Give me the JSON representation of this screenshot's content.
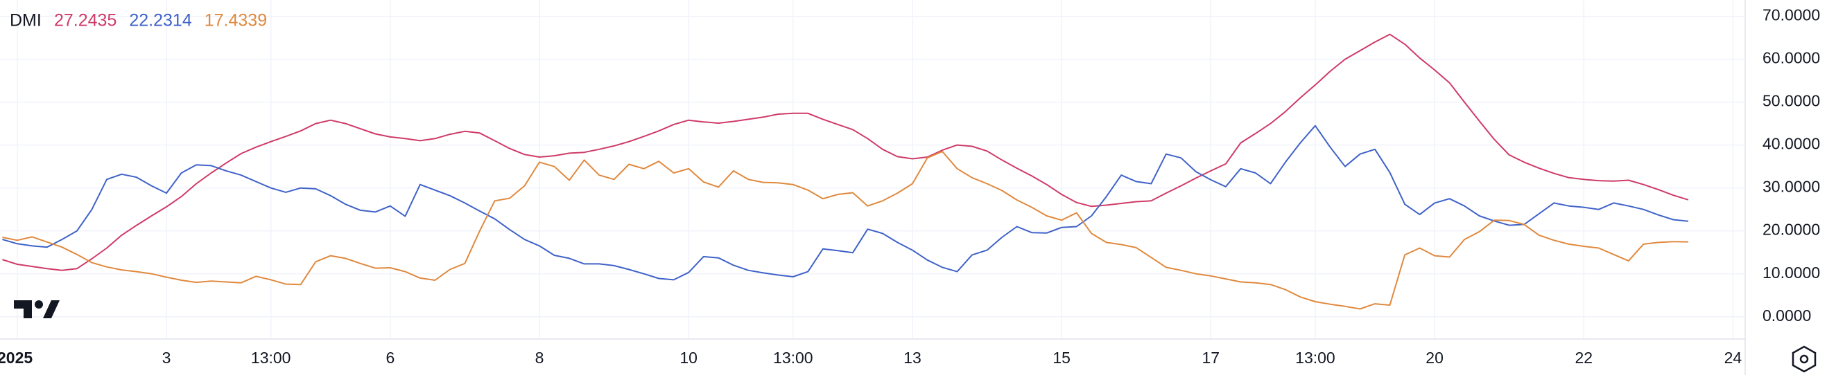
{
  "chart_data": {
    "type": "line",
    "title": "DMI",
    "categories": [
      null,
      "2025",
      null,
      null,
      null,
      null,
      null,
      null,
      null,
      null,
      null,
      "3",
      null,
      null,
      null,
      null,
      null,
      null,
      "13:00",
      null,
      null,
      null,
      null,
      null,
      null,
      null,
      "6",
      null,
      null,
      null,
      null,
      null,
      null,
      null,
      null,
      null,
      "8",
      null,
      null,
      null,
      null,
      null,
      null,
      null,
      null,
      null,
      "10",
      null,
      null,
      null,
      null,
      null,
      null,
      "13:00",
      null,
      null,
      null,
      null,
      null,
      null,
      null,
      "13",
      null,
      null,
      null,
      null,
      null,
      null,
      null,
      null,
      null,
      "15",
      null,
      null,
      null,
      null,
      null,
      null,
      null,
      null,
      null,
      "17",
      null,
      null,
      null,
      null,
      null,
      null,
      "13:00",
      null,
      null,
      null,
      null,
      null,
      null,
      null,
      "20",
      null,
      null,
      null,
      null,
      null,
      null,
      null,
      null,
      null,
      "22",
      null,
      null,
      null,
      null,
      null,
      null,
      null,
      null,
      null,
      "24"
    ],
    "series": [
      {
        "color": "#cf3a68",
        "values": [
          13.3,
          12.2,
          11.7,
          11.2,
          10.8,
          11.2,
          13.5,
          16,
          19,
          21.3,
          23.5,
          25.6,
          28,
          31,
          33.5,
          35.8,
          38,
          39.5,
          40.8,
          42,
          43.3,
          45,
          45.8,
          45,
          43.8,
          42.6,
          41.9,
          41.5,
          41,
          41.5,
          42.5,
          43.2,
          42.8,
          41,
          39.2,
          37.8,
          37.2,
          37.5,
          38.1,
          38.3,
          39,
          39.8,
          40.8,
          42,
          43.3,
          44.8,
          45.8,
          45.4,
          45.1,
          45.5,
          46,
          46.5,
          47.2,
          47.4,
          47.4,
          46,
          44.8,
          43.6,
          41.5,
          39,
          37.3,
          36.8,
          37.2,
          38.8,
          40,
          39.7,
          38.6,
          36.5,
          34.6,
          32.8,
          30.8,
          28.5,
          26.6,
          25.7,
          26,
          26.4,
          26.8,
          27,
          28.8,
          30.5,
          32.3,
          34,
          35.6,
          40.5,
          42.7,
          45,
          47.8,
          51,
          54,
          57.2,
          60,
          62,
          64,
          65.8,
          63.5,
          60.3,
          57.5,
          54.5,
          50,
          45.6,
          41.3,
          37.7,
          36,
          34.6,
          33.4,
          32.4,
          32,
          31.7,
          31.6,
          31.8,
          30.8,
          29.6,
          28.3,
          27.2435,
          null,
          null,
          null
        ]
      },
      {
        "color": "#3f62c8",
        "values": [
          18,
          17,
          16.5,
          16.2,
          18,
          20,
          25,
          32,
          33.2,
          32.5,
          30.5,
          28.8,
          33.5,
          35.4,
          35.2,
          34,
          33,
          31.5,
          30,
          29,
          30,
          29.8,
          28.2,
          26.2,
          24.8,
          24.4,
          25.8,
          23.4,
          30.8,
          29.5,
          28.2,
          26.5,
          24.6,
          22.8,
          20.3,
          18,
          16.5,
          14.3,
          13.6,
          12.3,
          12.3,
          11.9,
          11,
          10,
          8.9,
          8.6,
          10.3,
          14,
          13.7,
          12,
          10.8,
          10.2,
          9.7,
          9.3,
          10.5,
          15.8,
          15.4,
          14.9,
          20.4,
          19.4,
          17.3,
          15.5,
          13.2,
          11.5,
          10.5,
          14.4,
          15.5,
          18.5,
          21,
          19.6,
          19.5,
          20.8,
          21,
          23.5,
          28,
          33,
          31.5,
          31,
          37.9,
          37,
          33.8,
          31.9,
          30.3,
          34.5,
          33.5,
          31,
          36,
          40.5,
          44.5,
          39.5,
          35,
          37.9,
          39,
          33.6,
          26.2,
          23.8,
          26.5,
          27.5,
          25.8,
          23.5,
          22.3,
          21.3,
          21.5,
          24,
          26.5,
          25.8,
          25.5,
          25,
          26.5,
          25.8,
          25,
          23.7,
          22.6,
          22.2314,
          null,
          null,
          null
        ]
      },
      {
        "color": "#e0893e",
        "values": [
          18.5,
          17.8,
          18.6,
          17.4,
          16.2,
          14.5,
          12.6,
          11.6,
          10.9,
          10.5,
          10,
          9.2,
          8.5,
          8,
          8.3,
          8.1,
          7.9,
          9.4,
          8.6,
          7.6,
          7.5,
          12.8,
          14.2,
          13.6,
          12.4,
          11.3,
          11.4,
          10.5,
          9,
          8.5,
          11,
          12.4,
          20,
          27,
          27.6,
          30.5,
          36,
          35,
          31.8,
          36.5,
          33,
          32,
          35.5,
          34.5,
          36.2,
          33.5,
          34.5,
          31.4,
          30.2,
          34,
          32,
          31.3,
          31.2,
          30.8,
          29.5,
          27.5,
          28.5,
          28.9,
          25.8,
          27,
          28.8,
          31,
          37,
          38.5,
          34.5,
          32.4,
          31,
          29.4,
          27.2,
          25.5,
          23.5,
          22.5,
          24.2,
          19.4,
          17.3,
          16.8,
          16.1,
          13.8,
          11.5,
          10.8,
          10,
          9.5,
          8.8,
          8.1,
          7.9,
          7.5,
          6.3,
          4.6,
          3.5,
          2.9,
          2.4,
          1.8,
          3,
          2.7,
          14.4,
          16,
          14.2,
          13.9,
          18,
          19.8,
          22.5,
          22.4,
          21.5,
          19,
          17.8,
          16.9,
          16.4,
          16,
          14.5,
          13,
          16.9,
          17.3,
          17.5,
          17.4339,
          null,
          null,
          null
        ]
      }
    ],
    "ylim": [
      -4,
      70
    ],
    "yticks": [
      {
        "value": 0,
        "label": "0.0000"
      },
      {
        "value": 10,
        "label": "10.0000"
      },
      {
        "value": 20,
        "label": "20.0000"
      },
      {
        "value": 30,
        "label": "30.0000"
      },
      {
        "value": 40,
        "label": "40.0000"
      },
      {
        "value": 50,
        "label": "50.0000"
      },
      {
        "value": 60,
        "label": "60.0000"
      },
      {
        "value": 70,
        "label": "70.0000"
      }
    ],
    "grid": true
  }
}
